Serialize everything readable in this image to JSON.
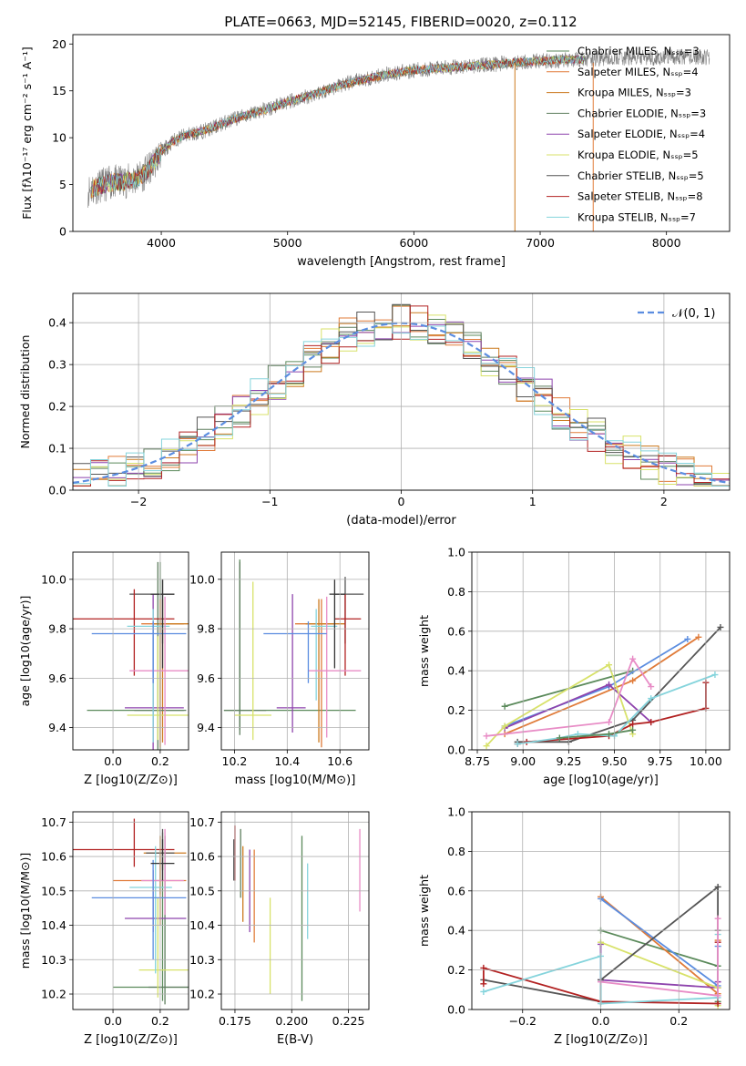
{
  "figure_title": "PLATE=0663, MJD=52145, FIBERID=0020, z=0.112",
  "series_colors": [
    "#5b8a5b",
    "#e07b39",
    "#cc7a1f",
    "#5f7f5f",
    "#8e44ad",
    "#d8e26a",
    "#555555",
    "#b22222",
    "#85d4dc"
  ],
  "chart_data": [
    {
      "id": "spectrum",
      "type": "line",
      "title": "PLATE=0663, MJD=52145, FIBERID=0020, z=0.112",
      "xlabel": "wavelength [Angstrom, rest frame]",
      "ylabel": "Flux [fλ10⁻¹⁷ erg cm⁻² s⁻¹ A⁻¹]",
      "xlim": [
        3300,
        8500
      ],
      "ylim": [
        0,
        21
      ],
      "xticks": [
        4000,
        5000,
        6000,
        7000,
        8000
      ],
      "yticks": [
        0,
        5,
        10,
        15,
        20
      ],
      "grid": false,
      "legend_position": "upper right",
      "legend": [
        "Chabrier MILES, N_SSP=3",
        "Salpeter MILES, N_SSP=4",
        "Kroupa MILES, N_SSP=3",
        "Chabrier ELODIE, N_SSP=3",
        "Salpeter ELODIE, N_SSP=4",
        "Kroupa ELODIE, N_SSP=5",
        "Chabrier STELIB, N_SSP=5",
        "Salpeter STELIB, N_SSP=8",
        "Kroupa STELIB, N_SSP=7"
      ],
      "continuum": {
        "x": [
          3420,
          3500,
          3600,
          3700,
          3800,
          3900,
          4000,
          4100,
          4200,
          4300,
          4400,
          4500,
          4600,
          4700,
          4800,
          4900,
          5000,
          5200,
          5400,
          5600,
          5800,
          6000,
          6200,
          6400,
          6600,
          6800,
          7000,
          7200,
          7400,
          7600,
          7800,
          8000,
          8200,
          8340
        ],
        "y": [
          4.4,
          4.8,
          5.2,
          5.3,
          5.6,
          6.5,
          8.5,
          9.7,
          10.3,
          10.6,
          11.0,
          11.6,
          12.1,
          12.5,
          12.9,
          13.3,
          13.8,
          14.6,
          15.5,
          16.2,
          16.8,
          17.2,
          17.4,
          17.6,
          17.8,
          18.0,
          18.2,
          18.3,
          18.4,
          18.5,
          18.5,
          18.6,
          18.6,
          18.6
        ]
      }
    },
    {
      "id": "residuals",
      "type": "line",
      "xlabel": "(data-model)/error",
      "ylabel": "Normed distribution",
      "xlim": [
        -2.5,
        2.5
      ],
      "ylim": [
        0,
        0.47
      ],
      "xticks": [
        -2,
        -1,
        0,
        1,
        2
      ],
      "yticks": [
        0.0,
        0.1,
        0.2,
        0.3,
        0.4
      ],
      "grid": true,
      "legend_position": "upper right",
      "legend": [
        "𝒩(0, 1)"
      ],
      "curve": "normal pdf, mean 0, std 1"
    },
    {
      "id": "age_vs_Z",
      "type": "scatter",
      "xlabel": "Z [log10(Z/Z⊙)]",
      "ylabel": "age  [log10(age/yr)]",
      "xlim": [
        -0.17,
        0.32
      ],
      "ylim": [
        9.31,
        10.11
      ],
      "xticks": [
        0.0,
        0.2
      ],
      "yticks": [
        9.4,
        9.6,
        9.8,
        10.0
      ],
      "grid": true,
      "points": [
        {
          "x": 0.2,
          "y": 9.47,
          "xerr": [
            0.31,
            0.1
          ],
          "yerr": [
            0.28,
            0.6
          ]
        },
        {
          "x": 0.2,
          "y": 9.82,
          "xerr": [
            0.08,
            0.1
          ],
          "yerr": [
            0.5,
            0.1
          ]
        },
        {
          "x": 0.21,
          "y": 9.82,
          "xerr": [
            0.04,
            0.11
          ],
          "yerr": [
            0.48,
            0.1
          ]
        },
        {
          "x": 0.19,
          "y": 9.47,
          "xerr": [
            0.1,
            0.12
          ],
          "yerr": [
            0.2,
            0.6
          ]
        },
        {
          "x": 0.17,
          "y": 9.48,
          "xerr": [
            0.12,
            0.13
          ],
          "yerr": [
            0.2,
            0.46
          ]
        },
        {
          "x": 0.19,
          "y": 9.45,
          "xerr": [
            0.13,
            0.14
          ],
          "yerr": [
            0.1,
            0.32
          ]
        },
        {
          "x": 0.21,
          "y": 9.94,
          "xerr": [
            0.14,
            0.05
          ],
          "yerr": [
            0.2,
            0.06
          ]
        },
        {
          "x": 0.09,
          "y": 9.84,
          "xerr": [
            0.26,
            0.17
          ],
          "yerr": [
            0.23,
            0.12
          ]
        },
        {
          "x": 0.17,
          "y": 9.81,
          "xerr": [
            0.11,
            0.07
          ],
          "yerr": [
            0.47,
            0.07
          ]
        },
        {
          "x": 0.22,
          "y": 9.63,
          "xerr": [
            0.15,
            0.1
          ],
          "yerr": [
            0.3,
            0.3
          ]
        },
        {
          "x": 0.17,
          "y": 9.78,
          "xerr": [
            0.26,
            0.14
          ],
          "yerr": [
            0.2,
            0.05
          ]
        },
        {
          "x": 0.21,
          "y": 9.94,
          "xerr": [
            0.05,
            0.05
          ],
          "yerr": [
            0.3,
            0.06
          ]
        }
      ]
    },
    {
      "id": "age_vs_mass",
      "type": "scatter",
      "xlabel": "mass [log10(M/M⊙)]",
      "ylabel": "",
      "xlim": [
        10.15,
        10.71
      ],
      "ylim": [
        9.31,
        10.11
      ],
      "xticks": [
        10.2,
        10.4,
        10.6
      ],
      "yticks": [
        9.4,
        9.6,
        9.8,
        10.0
      ],
      "grid": true,
      "points": [
        {
          "x": 10.22,
          "y": 9.47,
          "xerr": [
            0.06,
            0.44
          ],
          "yerr": [
            0.08,
            0.61
          ]
        },
        {
          "x": 10.53,
          "y": 9.82,
          "xerr": [
            0.1,
            0.05
          ],
          "yerr": [
            0.5,
            0.1
          ]
        },
        {
          "x": 10.52,
          "y": 9.82,
          "xerr": [
            0.05,
            0.1
          ],
          "yerr": [
            0.48,
            0.1
          ]
        },
        {
          "x": 10.22,
          "y": 9.47,
          "xerr": [
            0.06,
            0.1
          ],
          "yerr": [
            0.1,
            0.6
          ]
        },
        {
          "x": 10.42,
          "y": 9.48,
          "xerr": [
            0.06,
            0.05
          ],
          "yerr": [
            0.1,
            0.46
          ]
        },
        {
          "x": 10.27,
          "y": 9.45,
          "xerr": [
            0.07,
            0.07
          ],
          "yerr": [
            0.1,
            0.54
          ]
        },
        {
          "x": 10.62,
          "y": 9.94,
          "xerr": [
            0.04,
            0.07
          ],
          "yerr": [
            0.2,
            0.07
          ]
        },
        {
          "x": 10.62,
          "y": 9.84,
          "xerr": [
            0.04,
            0.06
          ],
          "yerr": [
            0.23,
            0.1
          ]
        },
        {
          "x": 10.51,
          "y": 9.81,
          "xerr": [
            0.02,
            0.08
          ],
          "yerr": [
            0.3,
            0.07
          ]
        },
        {
          "x": 10.55,
          "y": 9.63,
          "xerr": [
            0.07,
            0.13
          ],
          "yerr": [
            0.27,
            0.3
          ]
        },
        {
          "x": 10.48,
          "y": 9.78,
          "xerr": [
            0.17,
            0.07
          ],
          "yerr": [
            0.2,
            0.05
          ]
        },
        {
          "x": 10.58,
          "y": 9.94,
          "xerr": [
            0.02,
            0.04
          ],
          "yerr": [
            0.3,
            0.06
          ]
        }
      ]
    },
    {
      "id": "weight_vs_age",
      "type": "line",
      "xlabel": "age  [log10(age/yr)]",
      "ylabel": "mass weight",
      "xlim": [
        8.72,
        10.13
      ],
      "ylim": [
        0.0,
        1.0
      ],
      "xticks": [
        8.75,
        9.0,
        9.25,
        9.5,
        9.75,
        10.0
      ],
      "yticks": [
        0.0,
        0.2,
        0.4,
        0.6,
        0.8,
        1.0
      ],
      "grid": true,
      "series": [
        {
          "color": "#5b8a5b",
          "x": [
            8.9,
            9.6
          ],
          "y": [
            0.22,
            0.4
          ]
        },
        {
          "color": "#e07b39",
          "x": [
            8.9,
            9.6,
            9.96
          ],
          "y": [
            0.08,
            0.35,
            0.57
          ]
        },
        {
          "color": "#5b8de0",
          "x": [
            8.9,
            9.47,
            9.9
          ],
          "y": [
            0.12,
            0.32,
            0.56
          ]
        },
        {
          "color": "#8e44ad",
          "x": [
            8.9,
            9.47,
            9.7
          ],
          "y": [
            0.11,
            0.33,
            0.14
          ]
        },
        {
          "color": "#d8e26a",
          "x": [
            8.8,
            8.9,
            9.47,
            9.6
          ],
          "y": [
            0.02,
            0.12,
            0.43,
            0.08
          ]
        },
        {
          "color": "#555555",
          "x": [
            8.97,
            9.25,
            9.6,
            10.08
          ],
          "y": [
            0.04,
            0.04,
            0.15,
            0.62
          ]
        },
        {
          "color": "#b22222",
          "x": [
            8.97,
            9.02,
            9.47,
            9.6,
            9.7,
            10.0,
            10.0
          ],
          "y": [
            0.03,
            0.04,
            0.07,
            0.13,
            0.14,
            0.21,
            0.34
          ]
        },
        {
          "color": "#85d4dc",
          "x": [
            8.97,
            9.2,
            9.3,
            9.5,
            9.7,
            10.05
          ],
          "y": [
            0.03,
            0.06,
            0.08,
            0.07,
            0.26,
            0.38
          ]
        },
        {
          "color": "#e88cc6",
          "x": [
            8.8,
            9.47,
            9.6,
            9.7
          ],
          "y": [
            0.07,
            0.14,
            0.46,
            0.32
          ]
        },
        {
          "color": "#5b8a5b",
          "x": [
            9.2,
            9.47,
            9.6
          ],
          "y": [
            0.06,
            0.08,
            0.1
          ]
        }
      ]
    },
    {
      "id": "mass_vs_Z",
      "type": "scatter",
      "xlabel": "Z [log10(Z/Z⊙)]",
      "ylabel": "mass [log10(M/M⊙)]",
      "xlim": [
        -0.17,
        0.32
      ],
      "ylim": [
        10.155,
        10.73
      ],
      "xticks": [
        0.0,
        0.2
      ],
      "yticks": [
        10.2,
        10.3,
        10.4,
        10.5,
        10.6,
        10.7
      ],
      "grid": true,
      "points": [
        {
          "x": 0.21,
          "y": 10.22,
          "xerr": [
            0.21,
            0.11
          ],
          "yerr": [
            0.04,
            0.45
          ]
        },
        {
          "x": 0.2,
          "y": 10.53,
          "xerr": [
            0.2,
            0.11
          ],
          "yerr": [
            0.13,
            0.08
          ]
        },
        {
          "x": 0.2,
          "y": 10.61,
          "xerr": [
            0.07,
            0.11
          ],
          "yerr": [
            0.12,
            0.05
          ]
        },
        {
          "x": 0.22,
          "y": 10.22,
          "xerr": [
            0.07,
            0.11
          ],
          "yerr": [
            0.05,
            0.44
          ]
        },
        {
          "x": 0.17,
          "y": 10.42,
          "xerr": [
            0.12,
            0.14
          ],
          "yerr": [
            0.04,
            0.14
          ]
        },
        {
          "x": 0.19,
          "y": 10.27,
          "xerr": [
            0.08,
            0.14
          ],
          "yerr": [
            0.08,
            0.21
          ]
        },
        {
          "x": 0.21,
          "y": 10.61,
          "xerr": [
            0.07,
            0.05
          ],
          "yerr": [
            0.05,
            0.07
          ]
        },
        {
          "x": 0.09,
          "y": 10.62,
          "xerr": [
            0.26,
            0.17
          ],
          "yerr": [
            0.05,
            0.09
          ]
        },
        {
          "x": 0.18,
          "y": 10.51,
          "xerr": [
            0.11,
            0.07
          ],
          "yerr": [
            0.25,
            0.12
          ]
        },
        {
          "x": 0.22,
          "y": 10.53,
          "xerr": [
            0.1,
            0.08
          ],
          "yerr": [
            0.1,
            0.15
          ]
        },
        {
          "x": 0.17,
          "y": 10.48,
          "xerr": [
            0.26,
            0.14
          ],
          "yerr": [
            0.18,
            0.11
          ]
        },
        {
          "x": 0.21,
          "y": 10.58,
          "xerr": [
            0.05,
            0.05
          ],
          "yerr": [
            0.05,
            0.07
          ]
        }
      ]
    },
    {
      "id": "mass_vs_ebv",
      "type": "scatter",
      "xlabel": "E(B-V)",
      "ylabel": "",
      "xlim": [
        0.169,
        0.234
      ],
      "ylim": [
        10.155,
        10.73
      ],
      "xticks": [
        0.175,
        0.2,
        0.225
      ],
      "yticks": [
        10.2,
        10.3,
        10.4,
        10.5,
        10.6,
        10.7
      ],
      "grid": true,
      "points": [
        {
          "x": 0.2045,
          "y": 10.42,
          "xerr": [
            0,
            0
          ],
          "yerr": [
            0.24,
            0.24
          ]
        },
        {
          "x": 0.1835,
          "y": 10.48,
          "xerr": [
            0,
            0
          ],
          "yerr": [
            0.13,
            0.14
          ]
        },
        {
          "x": 0.1785,
          "y": 10.52,
          "xerr": [
            0,
            0
          ],
          "yerr": [
            0.11,
            0.11
          ]
        },
        {
          "x": 0.1775,
          "y": 10.58,
          "xerr": [
            0,
            0
          ],
          "yerr": [
            0.1,
            0.1
          ]
        },
        {
          "x": 0.1815,
          "y": 10.5,
          "xerr": [
            0,
            0
          ],
          "yerr": [
            0.12,
            0.12
          ]
        },
        {
          "x": 0.1905,
          "y": 10.34,
          "xerr": [
            0,
            0
          ],
          "yerr": [
            0.14,
            0.14
          ]
        },
        {
          "x": 0.1745,
          "y": 10.59,
          "xerr": [
            0,
            0
          ],
          "yerr": [
            0.06,
            0.06
          ]
        },
        {
          "x": 0.175,
          "y": 10.61,
          "xerr": [
            0,
            0
          ],
          "yerr": [
            0.08,
            0.08
          ]
        },
        {
          "x": 0.207,
          "y": 10.47,
          "xerr": [
            0,
            0
          ],
          "yerr": [
            0.11,
            0.11
          ]
        },
        {
          "x": 0.23,
          "y": 10.56,
          "xerr": [
            0,
            0
          ],
          "yerr": [
            0.12,
            0.12
          ]
        }
      ]
    },
    {
      "id": "weight_vs_Z",
      "type": "line",
      "xlabel": "Z [log10(Z/Z⊙)]",
      "ylabel": "mass weight",
      "xlim": [
        -0.33,
        0.33
      ],
      "ylim": [
        0.0,
        1.0
      ],
      "xticks": [
        -0.2,
        0.0,
        0.2
      ],
      "yticks": [
        0.0,
        0.2,
        0.4,
        0.6,
        0.8,
        1.0
      ],
      "grid": true,
      "series": [
        {
          "color": "#5b8a5b",
          "x": [
            0.0,
            0.3,
            0.3
          ],
          "y": [
            0.4,
            0.22,
            0.04
          ]
        },
        {
          "color": "#e07b39",
          "x": [
            0.0,
            0.3,
            0.3
          ],
          "y": [
            0.57,
            0.08,
            0.35
          ]
        },
        {
          "color": "#5b8de0",
          "x": [
            0.0,
            0.3,
            0.3
          ],
          "y": [
            0.56,
            0.12,
            0.32
          ]
        },
        {
          "color": "#8e44ad",
          "x": [
            0.0,
            0.0,
            0.3,
            0.3
          ],
          "y": [
            0.33,
            0.15,
            0.11,
            0.14
          ]
        },
        {
          "color": "#d8e26a",
          "x": [
            0.0,
            0.3,
            0.3
          ],
          "y": [
            0.34,
            0.11,
            0.02
          ]
        },
        {
          "color": "#555555",
          "x": [
            -0.3,
            0.0,
            0.0,
            0.3,
            0.3
          ],
          "y": [
            0.15,
            0.04,
            0.15,
            0.62,
            0.4
          ]
        },
        {
          "color": "#b22222",
          "x": [
            -0.3,
            -0.3,
            0.0,
            0.3,
            0.3
          ],
          "y": [
            0.13,
            0.21,
            0.04,
            0.03,
            0.34
          ]
        },
        {
          "color": "#85d4dc",
          "x": [
            -0.3,
            0.0,
            0.0,
            0.3,
            0.3
          ],
          "y": [
            0.09,
            0.27,
            0.03,
            0.06,
            0.38
          ]
        },
        {
          "color": "#e88cc6",
          "x": [
            0.0,
            0.3,
            0.3
          ],
          "y": [
            0.14,
            0.07,
            0.46
          ]
        }
      ]
    }
  ]
}
